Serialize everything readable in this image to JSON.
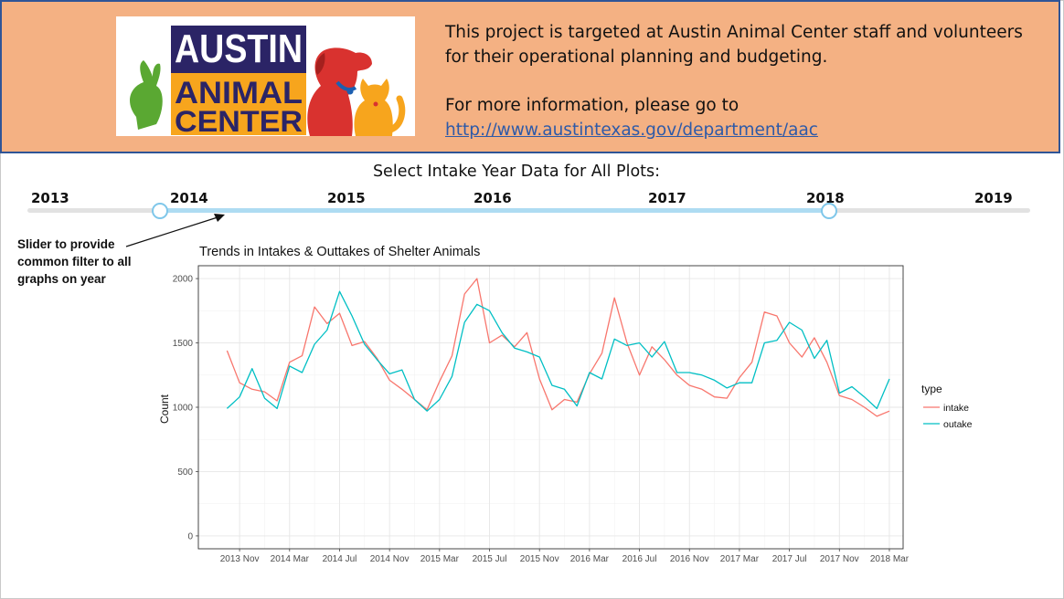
{
  "banner": {
    "logo_text": [
      "AUSTIN",
      "ANIMAL",
      "CENTER"
    ],
    "description": "This project is targeted at Austin Animal Center staff and volunteers for their operational planning and budgeting.",
    "more_info": "For more information, please go to",
    "link": "http://www.austintexas.gov/department/aac"
  },
  "slider": {
    "title": "Select Intake Year Data for All Plots:",
    "years": [
      "2013",
      "2014",
      "2015",
      "2016",
      "2017",
      "2018",
      "2019"
    ],
    "selected_range": [
      "2014",
      "2018"
    ]
  },
  "annotation": "Slider to provide common filter to all graphs on year",
  "colors": {
    "intake": "#f8766d",
    "outtake": "#00bfc4",
    "banner_bg": "#f4b183",
    "banner_border": "#2f5597",
    "slider_fill": "#aedcf2"
  },
  "chart_data": {
    "type": "line",
    "title": "Trends in Intakes & Outtakes of Shelter Animals",
    "xlabel": "",
    "ylabel": "Count",
    "ylim": [
      0,
      2000
    ],
    "yticks": [
      0,
      500,
      1000,
      1500,
      2000
    ],
    "xlim": [
      "2013-08",
      "2018-04"
    ],
    "xticks": [
      "2013-11",
      "2014-03",
      "2014-07",
      "2014-11",
      "2015-03",
      "2015-07",
      "2015-11",
      "2016-03",
      "2016-07",
      "2016-11",
      "2017-03",
      "2017-07",
      "2017-11",
      "2018-03"
    ],
    "xtick_labels": [
      "2013 Nov",
      "2014 Mar",
      "2014 Jul",
      "2014 Nov",
      "2015 Mar",
      "2015 Jul",
      "2015 Nov",
      "2016 Mar",
      "2016 Jul",
      "2016 Nov",
      "2017 Mar",
      "2017 Jul",
      "2017 Nov",
      "2018 Mar"
    ],
    "grid": true,
    "legend": {
      "title": "type",
      "position": "right"
    },
    "x": [
      "2013-10",
      "2013-11",
      "2013-12",
      "2014-01",
      "2014-02",
      "2014-03",
      "2014-04",
      "2014-05",
      "2014-06",
      "2014-07",
      "2014-08",
      "2014-09",
      "2014-10",
      "2014-11",
      "2014-12",
      "2015-01",
      "2015-02",
      "2015-03",
      "2015-04",
      "2015-05",
      "2015-06",
      "2015-07",
      "2015-08",
      "2015-09",
      "2015-10",
      "2015-11",
      "2015-12",
      "2016-01",
      "2016-02",
      "2016-03",
      "2016-04",
      "2016-05",
      "2016-06",
      "2016-07",
      "2016-08",
      "2016-09",
      "2016-10",
      "2016-11",
      "2016-12",
      "2017-01",
      "2017-02",
      "2017-03",
      "2017-04",
      "2017-05",
      "2017-06",
      "2017-07",
      "2017-08",
      "2017-09",
      "2017-10",
      "2017-11",
      "2017-12",
      "2018-01",
      "2018-02",
      "2018-03"
    ],
    "series": [
      {
        "name": "intake",
        "values": [
          1440,
          1190,
          1140,
          1120,
          1050,
          1350,
          1400,
          1780,
          1650,
          1730,
          1480,
          1510,
          1380,
          1210,
          1140,
          1060,
          980,
          1200,
          1400,
          1880,
          2000,
          1500,
          1560,
          1470,
          1580,
          1220,
          980,
          1060,
          1040,
          1260,
          1420,
          1850,
          1500,
          1250,
          1470,
          1370,
          1250,
          1170,
          1140,
          1080,
          1070,
          1230,
          1350,
          1740,
          1710,
          1500,
          1390,
          1540,
          1350,
          1090,
          1060,
          1000,
          930,
          970
        ]
      },
      {
        "name": "outake",
        "values": [
          990,
          1080,
          1300,
          1070,
          990,
          1320,
          1270,
          1490,
          1600,
          1900,
          1710,
          1490,
          1370,
          1260,
          1290,
          1060,
          970,
          1060,
          1240,
          1660,
          1800,
          1750,
          1580,
          1460,
          1430,
          1390,
          1170,
          1140,
          1010,
          1270,
          1220,
          1530,
          1480,
          1500,
          1390,
          1510,
          1270,
          1270,
          1250,
          1210,
          1150,
          1190,
          1190,
          1500,
          1520,
          1660,
          1600,
          1380,
          1520,
          1110,
          1160,
          1080,
          990,
          1220
        ]
      }
    ]
  }
}
